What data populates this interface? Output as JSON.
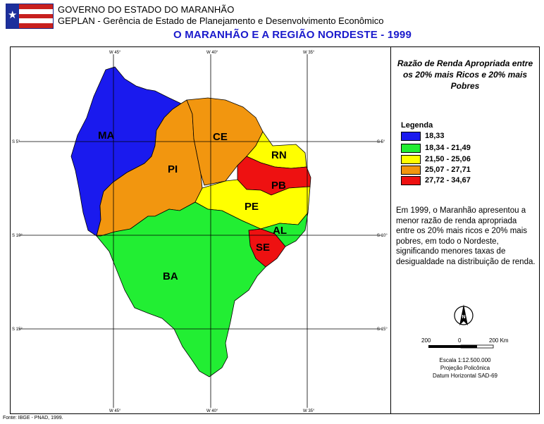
{
  "header": {
    "government": "GOVERNO DO ESTADO DO MARANHÃO",
    "agency": "GEPLAN - Gerência de Estado de Planejamento e Desenvolvimento Econômico",
    "title": "O MARANHÃO E A REGIÃO NORDESTE - 1999"
  },
  "map": {
    "longitudes": [
      "W 45°",
      "W 40°",
      "W 35°"
    ],
    "latitudes": [
      "S 5°",
      "S 10°",
      "S 15°"
    ],
    "states": [
      {
        "code": "MA",
        "class": "18,33",
        "color": "#1a1aee"
      },
      {
        "code": "PI",
        "class": "25,07 - 27,71",
        "color": "#f2960f"
      },
      {
        "code": "CE",
        "class": "25,07 - 27,71",
        "color": "#f2960f"
      },
      {
        "code": "RN",
        "class": "21,50 - 25,06",
        "color": "#ffff00"
      },
      {
        "code": "PB",
        "class": "27,72 - 34,67",
        "color": "#ee1111"
      },
      {
        "code": "PE",
        "class": "21,50 - 25,06",
        "color": "#ffff00"
      },
      {
        "code": "AL",
        "class": "18,34 - 21,49",
        "color": "#22ee33"
      },
      {
        "code": "SE",
        "class": "27,72 - 34,67",
        "color": "#ee1111"
      },
      {
        "code": "BA",
        "class": "18,34 - 21,49",
        "color": "#22ee33"
      }
    ]
  },
  "panel": {
    "subtitle": "Razão de Renda Apropriada entre os 20% mais Ricos e 20% mais Pobres",
    "legend_title": "Legenda",
    "legend": [
      {
        "label": "18,33",
        "color": "#1a1aee"
      },
      {
        "label": "18,34 - 21,49",
        "color": "#22ee33"
      },
      {
        "label": "21,50 - 25,06",
        "color": "#ffff00"
      },
      {
        "label": "25,07 - 27,71",
        "color": "#f2960f"
      },
      {
        "label": "27,72 - 34,67",
        "color": "#ee1111"
      }
    ],
    "description": "Em 1999, o Maranhão apresentou a menor razão de renda apropriada entre os 20% mais ricos e 20% mais pobres, em todo o Nordeste, significando menores taxas de desigualdade na distribuição de renda.",
    "north_letter": "N",
    "scale_labels": [
      "200",
      "0",
      "200 Km"
    ],
    "scale_text": "Escala 1:12.500.000",
    "projection": "Projeção Policônica",
    "datum": "Datum Horizontal SAD-69"
  },
  "footer": {
    "source": "Fonte: IBGE - PNAD, 1999."
  }
}
